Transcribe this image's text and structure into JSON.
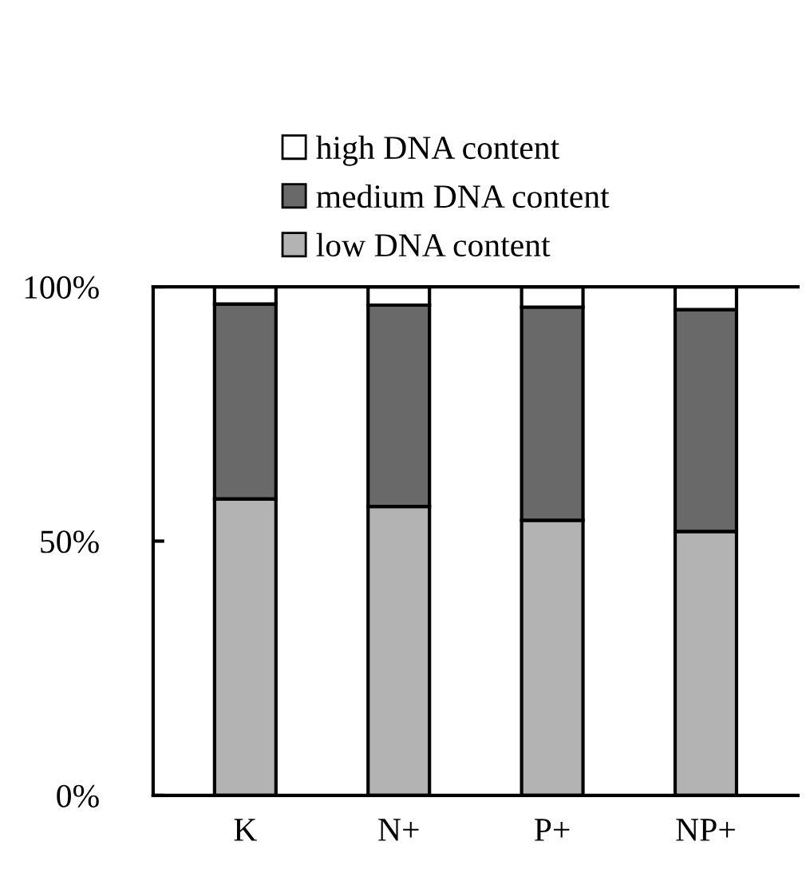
{
  "chart_data": {
    "type": "bar",
    "stacked": true,
    "categories": [
      "K",
      "N+",
      "P+",
      "NP+"
    ],
    "series": [
      {
        "name": "low DNA content",
        "color": "#b3b3b3",
        "values": [
          58.3,
          56.8,
          54.1,
          51.9
        ]
      },
      {
        "name": "medium DNA content",
        "color": "#696969",
        "values": [
          38.3,
          39.6,
          41.9,
          43.6
        ]
      },
      {
        "name": "high DNA content",
        "color": "#ffffff",
        "values": [
          3.4,
          3.6,
          4.0,
          4.5
        ]
      }
    ],
    "ylim": [
      0,
      100
    ],
    "yticks": [
      {
        "value": 0,
        "label": "0%"
      },
      {
        "value": 50,
        "label": "50%"
      },
      {
        "value": 100,
        "label": "100%"
      }
    ],
    "grid": false,
    "legend": "top"
  }
}
